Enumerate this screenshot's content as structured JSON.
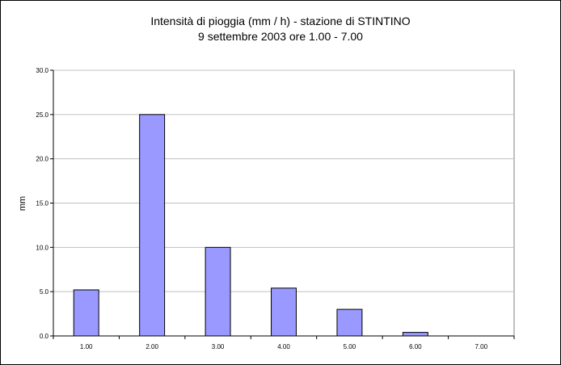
{
  "chart_data": {
    "type": "bar",
    "title": "Intensità di pioggia (mm / h)  - stazione di STINTINO",
    "subtitle": "9 settembre 2003 ore 1.00 - 7.00",
    "xlabel": "",
    "ylabel": "mm",
    "categories": [
      "1.00",
      "2.00",
      "3.00",
      "4.00",
      "5.00",
      "6.00",
      "7.00"
    ],
    "values": [
      5.2,
      25.0,
      10.0,
      5.4,
      3.0,
      0.4,
      0.0
    ],
    "ylim": [
      0,
      30
    ],
    "yticks": [
      "0.0",
      "5.0",
      "10.0",
      "15.0",
      "20.0",
      "25.0",
      "30.0"
    ],
    "ytick_values": [
      0,
      5,
      10,
      15,
      20,
      25,
      30
    ],
    "grid": true,
    "legend": "none",
    "colors": {
      "bar_fill": "#9999ff",
      "bar_stroke": "#000000",
      "plot_background": "#ffffff",
      "grid": "#c0c0c0"
    }
  }
}
